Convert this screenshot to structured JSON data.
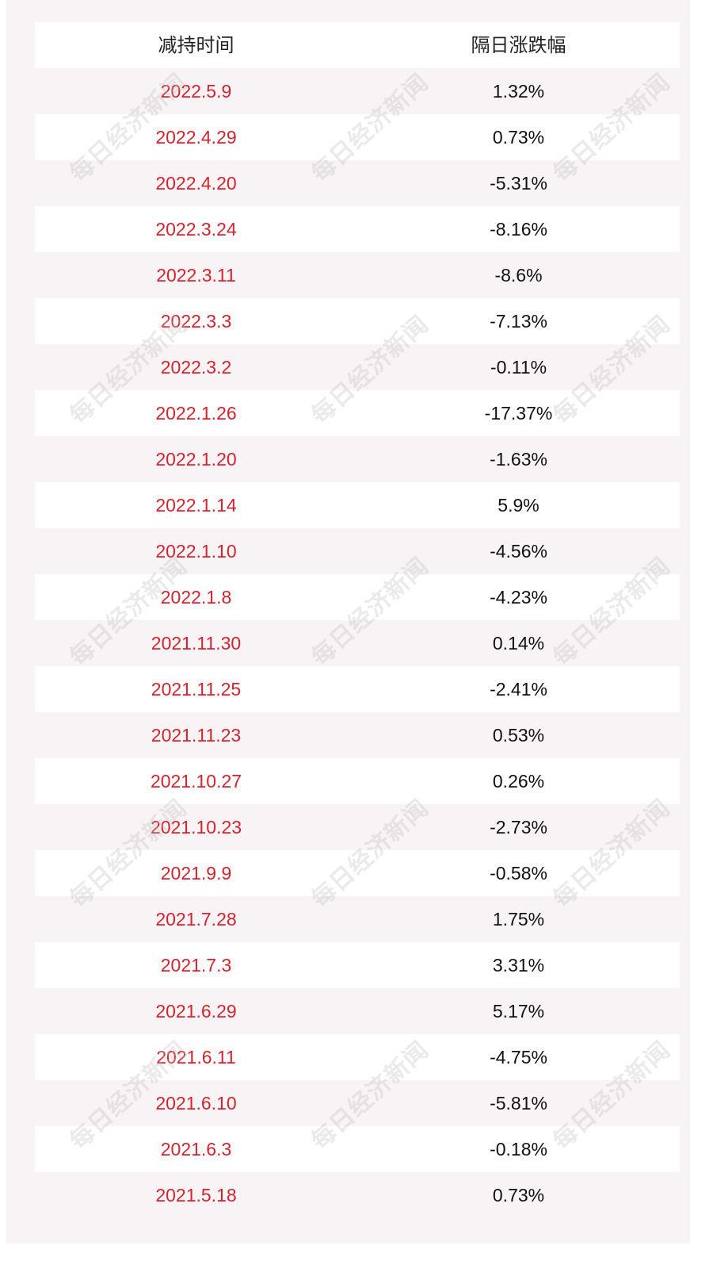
{
  "table": {
    "headers": {
      "date": "减持时间",
      "change": "隔日涨跌幅"
    },
    "rows": [
      {
        "date": "2022.5.9",
        "change": "1.32%"
      },
      {
        "date": "2022.4.29",
        "change": "0.73%"
      },
      {
        "date": "2022.4.20",
        "change": "-5.31%"
      },
      {
        "date": "2022.3.24",
        "change": "-8.16%"
      },
      {
        "date": "2022.3.11",
        "change": "-8.6%"
      },
      {
        "date": "2022.3.3",
        "change": "-7.13%"
      },
      {
        "date": "2022.3.2",
        "change": "-0.11%"
      },
      {
        "date": "2022.1.26",
        "change": "-17.37%"
      },
      {
        "date": "2022.1.20",
        "change": "-1.63%"
      },
      {
        "date": "2022.1.14",
        "change": "5.9%"
      },
      {
        "date": "2022.1.10",
        "change": "-4.56%"
      },
      {
        "date": "2022.1.8",
        "change": "-4.23%"
      },
      {
        "date": "2021.11.30",
        "change": "0.14%"
      },
      {
        "date": "2021.11.25",
        "change": "-2.41%"
      },
      {
        "date": "2021.11.23",
        "change": "0.53%"
      },
      {
        "date": "2021.10.27",
        "change": "0.26%"
      },
      {
        "date": "2021.10.23",
        "change": "-2.73%"
      },
      {
        "date": "2021.9.9",
        "change": "-0.58%"
      },
      {
        "date": "2021.7.28",
        "change": "1.75%"
      },
      {
        "date": "2021.7.3",
        "change": "3.31%"
      },
      {
        "date": "2021.6.29",
        "change": "5.17%"
      },
      {
        "date": "2021.6.11",
        "change": "-4.75%"
      },
      {
        "date": "2021.6.10",
        "change": "-5.81%"
      },
      {
        "date": "2021.6.3",
        "change": "-0.18%"
      },
      {
        "date": "2021.5.18",
        "change": "0.73%"
      }
    ]
  },
  "watermark": {
    "text": "每日经济新闻"
  },
  "colors": {
    "date_text": "#d4232f",
    "value_text": "#111111",
    "panel_bg": "#f8f4f5",
    "row_bg": "#ffffff"
  }
}
